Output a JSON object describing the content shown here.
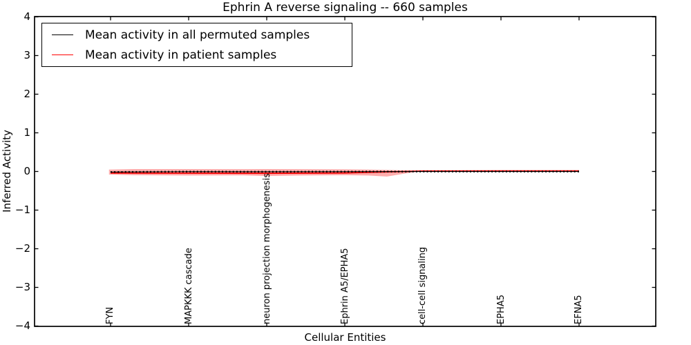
{
  "figure": {
    "title": "Ephrin A  reverse signaling -- 660 samples",
    "xlabel": "Cellular Entities",
    "ylabel": "Inferred Activity"
  },
  "legend": {
    "entries": [
      {
        "label": "Mean activity in all permuted samples",
        "color": "#000000"
      },
      {
        "label": "Mean activity in patient samples",
        "color": "#ff0000"
      }
    ],
    "position": "upper left"
  },
  "chart_data": {
    "type": "line",
    "title": "Ephrin A  reverse signaling -- 660 samples",
    "xlabel": "Cellular Entities",
    "ylabel": "Inferred Activity",
    "ylim": [
      -4,
      4
    ],
    "ytick_values": [
      4,
      3,
      2,
      1,
      0,
      -1,
      -2,
      -3,
      -4
    ],
    "ytick_labels": [
      "4",
      "3",
      "2",
      "1",
      "0",
      "−1",
      "−2",
      "−3",
      "−4"
    ],
    "categories": [
      "FYN",
      "MAPKKK cascade",
      "neuron projection morphogenesis",
      "Ephrin A5/EPHA5",
      "cell-cell signaling",
      "EPHA5",
      "EFNA5"
    ],
    "grid": false,
    "legend_position": "upper left",
    "series": [
      {
        "name": "Mean activity in all permuted samples",
        "color": "#000000",
        "style": "solid-with-errorbar-caps",
        "x": [
          0,
          1,
          2,
          3,
          4,
          5,
          6
        ],
        "values": [
          -0.015,
          -0.005,
          -0.008,
          -0.005,
          -0.002,
          -0.002,
          -0.002
        ]
      },
      {
        "name": "Mean activity in patient samples",
        "color": "#ff0000",
        "style": "solid",
        "x": [
          0,
          1,
          2,
          3,
          4,
          5,
          6
        ],
        "values": [
          -0.042,
          -0.045,
          -0.048,
          -0.04,
          0.012,
          0.016,
          0.016
        ]
      }
    ],
    "band": {
      "name": "spread of mean activity in patient samples",
      "color": "#ff0000",
      "opacity": 0.32,
      "x": [
        -0.02,
        0.3,
        1,
        1.7,
        2,
        2.4,
        3,
        3.3,
        3.54,
        3.75,
        3.95,
        4.2,
        5,
        5.98
      ],
      "upper": [
        0.05,
        0.062,
        0.062,
        0.06,
        0.062,
        0.06,
        0.056,
        0.05,
        0.04,
        0.028,
        0.02,
        0.022,
        0.024,
        0.025
      ],
      "lower": [
        -0.08,
        -0.095,
        -0.105,
        -0.1,
        -0.118,
        -0.105,
        -0.095,
        -0.105,
        -0.132,
        -0.06,
        0.002,
        0.008,
        0.008,
        0.008
      ]
    }
  }
}
